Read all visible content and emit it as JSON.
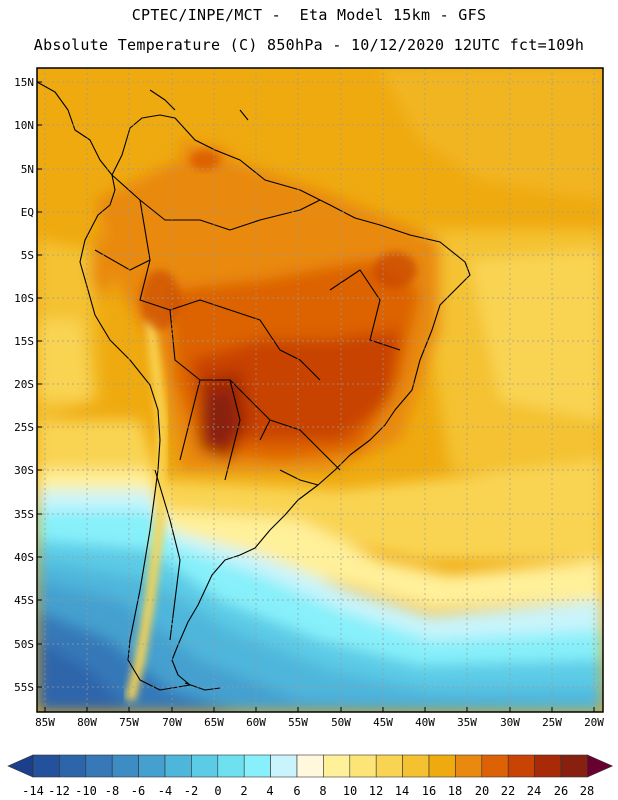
{
  "header": {
    "line1": "CPTEC/INPE/MCT -  Eta Model 15km - GFS",
    "line2": "Absolute Temperature (C) 850hPa - 10/12/2020 12UTC fct=109h"
  },
  "map": {
    "lat_ticks": [
      "15N",
      "10N",
      "5N",
      "EQ",
      "5S",
      "10S",
      "15S",
      "20S",
      "25S",
      "30S",
      "35S",
      "40S",
      "45S",
      "50S",
      "55S"
    ],
    "lon_ticks": [
      "85W",
      "80W",
      "75W",
      "70W",
      "65W",
      "60W",
      "55W",
      "50W",
      "45W",
      "40W",
      "35W",
      "30W",
      "25W",
      "20W"
    ],
    "lat_range": [
      17,
      -58
    ],
    "lon_range": [
      -86,
      -19
    ]
  },
  "colorbar": {
    "labels": [
      "-14",
      "-12",
      "-10",
      "-8",
      "-6",
      "-4",
      "-2",
      "0",
      "2",
      "4",
      "6",
      "8",
      "10",
      "12",
      "14",
      "16",
      "18",
      "20",
      "22",
      "24",
      "26",
      "28"
    ],
    "colors": [
      "#1c3f8c",
      "#24519c",
      "#2d65ab",
      "#3678b8",
      "#3d8cc4",
      "#45a0cf",
      "#4fb6db",
      "#5ccbe6",
      "#6ee0ef",
      "#87f0fa",
      "#c9f4fb",
      "#fff8dc",
      "#fff09a",
      "#fde476",
      "#f9d452",
      "#f4c231",
      "#efaa10",
      "#e98910",
      "#dd6206",
      "#c84304",
      "#a82a06",
      "#882010",
      "#680030"
    ]
  }
}
